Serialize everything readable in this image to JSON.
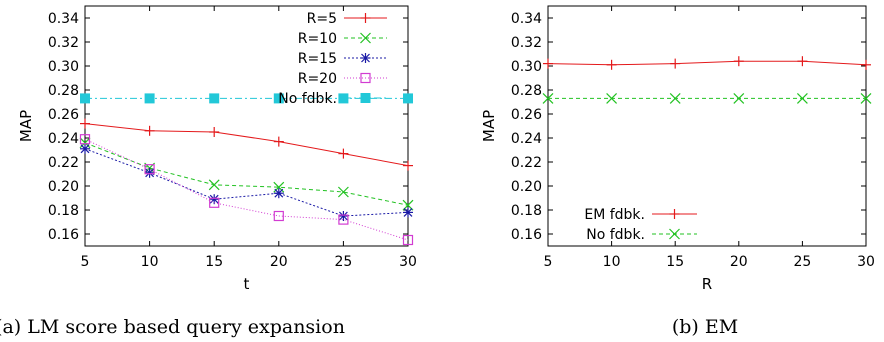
{
  "chart_data": [
    {
      "type": "line",
      "caption": "(a) LM score based query expansion",
      "xlabel": "t",
      "ylabel": "MAP",
      "xlim": [
        5,
        30
      ],
      "ylim": [
        0.15,
        0.35
      ],
      "xticks": [
        "5",
        "10",
        "15",
        "20",
        "25",
        "30"
      ],
      "yticks": [
        "0.16",
        "0.18",
        "0.20",
        "0.22",
        "0.24",
        "0.26",
        "0.28",
        "0.30",
        "0.32",
        "0.34"
      ],
      "grid": false,
      "legend_position": "top-right",
      "x": [
        5,
        10,
        15,
        20,
        25,
        30
      ],
      "series": [
        {
          "name": "R=5",
          "color": "#e41a1c",
          "marker": "plus",
          "dash": "",
          "values": [
            0.252,
            0.246,
            0.245,
            0.237,
            0.227,
            0.217
          ]
        },
        {
          "name": "R=10",
          "color": "#22c222",
          "marker": "x",
          "dash": "4,3",
          "values": [
            0.236,
            0.215,
            0.201,
            0.199,
            0.195,
            0.184
          ]
        },
        {
          "name": "R=15",
          "color": "#1a1aa6",
          "marker": "star",
          "dash": "2,2",
          "values": [
            0.231,
            0.211,
            0.189,
            0.194,
            0.175,
            0.178
          ]
        },
        {
          "name": "R=20",
          "color": "#d23cd2",
          "marker": "open-square",
          "dash": "1,2",
          "values": [
            0.239,
            0.214,
            0.186,
            0.175,
            0.172,
            0.155
          ]
        },
        {
          "name": "No fdbk.",
          "color": "#22c8d8",
          "marker": "filled-square",
          "dash": "7,3,2,3",
          "values": [
            0.273,
            0.273,
            0.273,
            0.273,
            0.273,
            0.273
          ]
        }
      ]
    },
    {
      "type": "line",
      "caption": "(b) EM",
      "xlabel": "R",
      "ylabel": "MAP",
      "xlim": [
        5,
        30
      ],
      "ylim": [
        0.15,
        0.35
      ],
      "xticks": [
        "5",
        "10",
        "15",
        "20",
        "25",
        "30"
      ],
      "yticks": [
        "0.16",
        "0.18",
        "0.20",
        "0.22",
        "0.24",
        "0.26",
        "0.28",
        "0.30",
        "0.32",
        "0.34"
      ],
      "grid": false,
      "legend_position": "bottom-left",
      "x": [
        5,
        10,
        15,
        20,
        25,
        30
      ],
      "series": [
        {
          "name": "EM fdbk.",
          "color": "#e41a1c",
          "marker": "plus",
          "dash": "",
          "values": [
            0.302,
            0.301,
            0.302,
            0.304,
            0.304,
            0.301
          ]
        },
        {
          "name": "No fdbk.",
          "color": "#22c222",
          "marker": "x",
          "dash": "4,3",
          "values": [
            0.273,
            0.273,
            0.273,
            0.273,
            0.273,
            0.273
          ]
        }
      ]
    }
  ]
}
